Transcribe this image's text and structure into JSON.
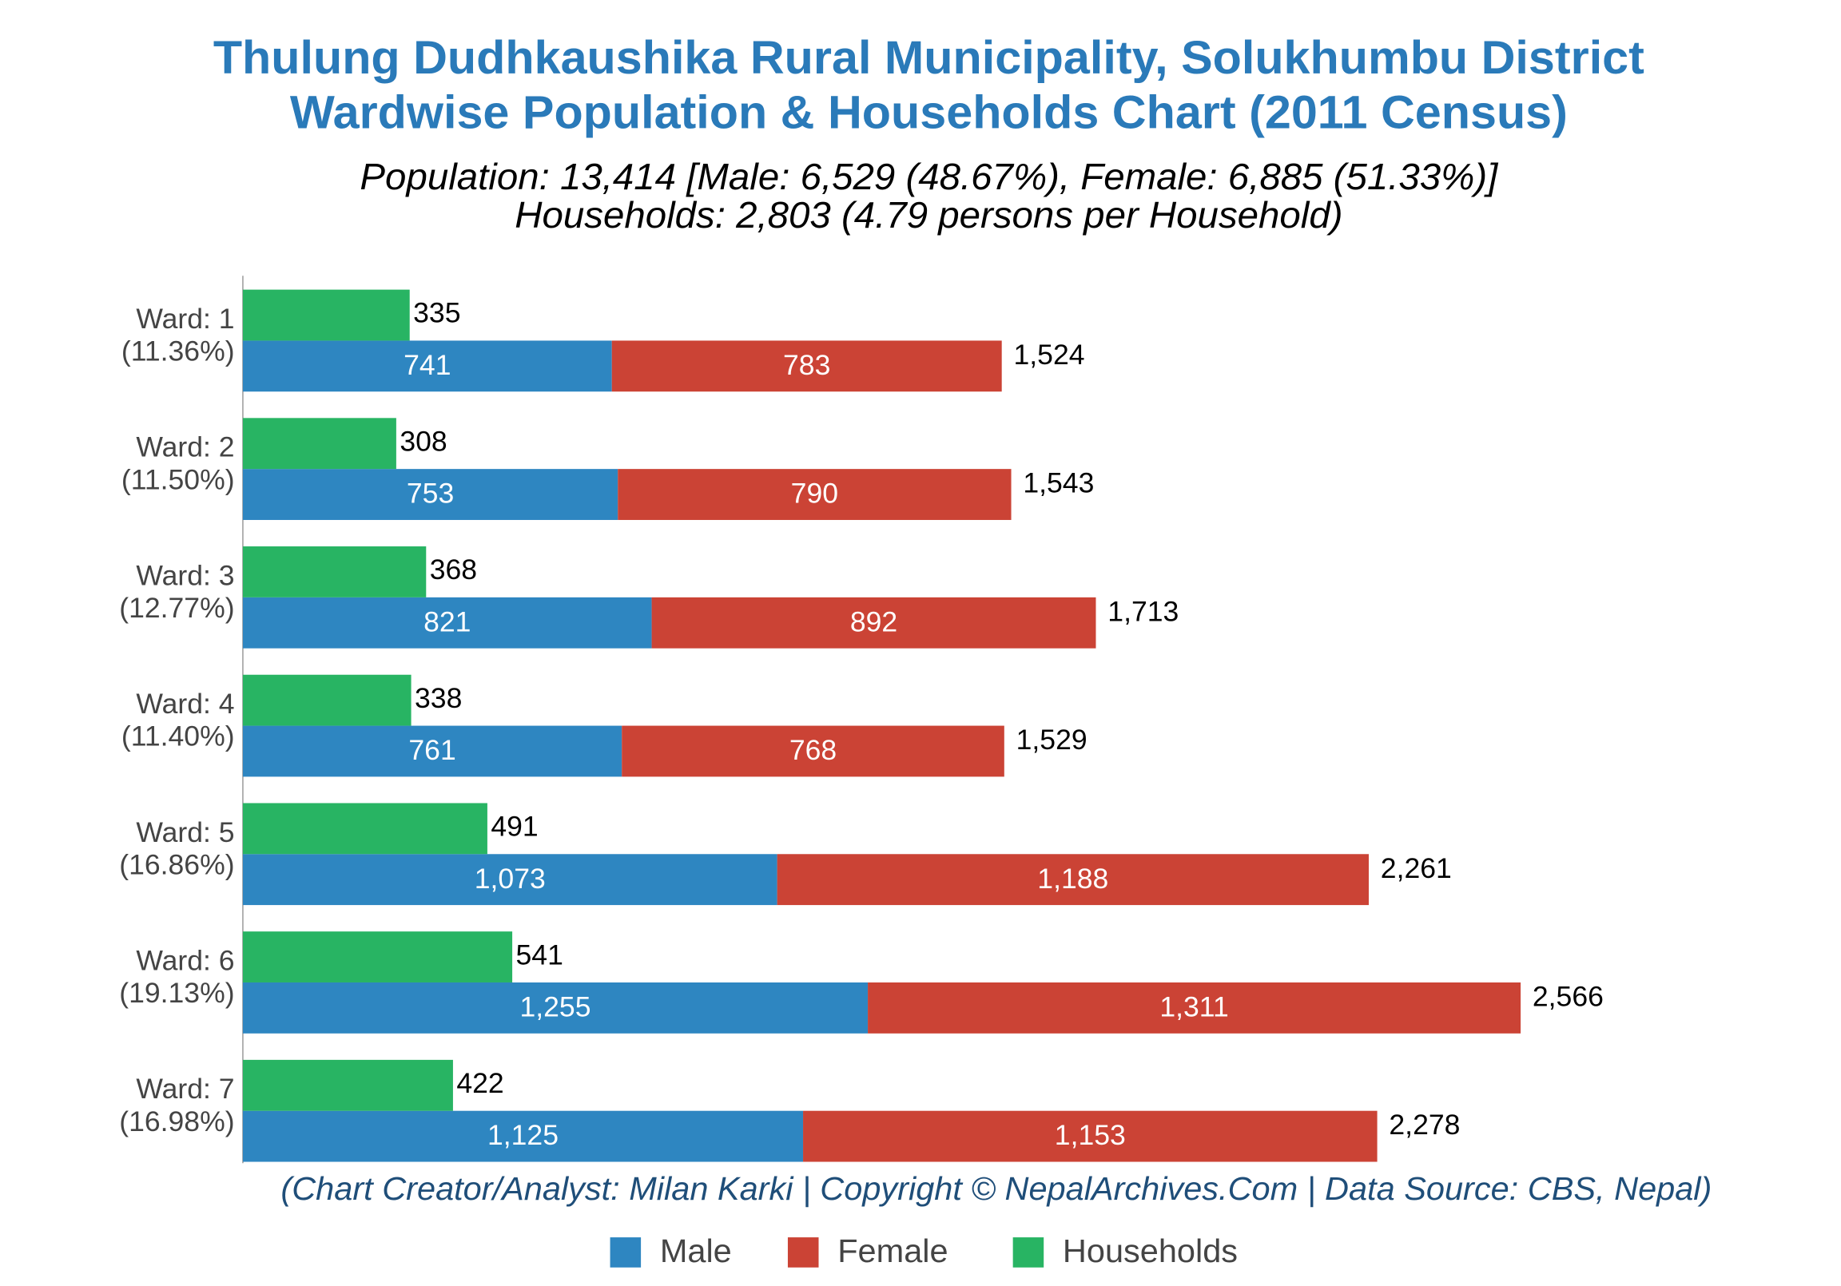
{
  "chart_data": {
    "type": "bar",
    "orientation": "horizontal",
    "title": "Thulung Dudhkaushika Rural Municipality, Solukhumbu District",
    "title_line2": "Wardwise Population & Households Chart (2011 Census)",
    "subtitle": "Population: 13,414 [Male: 6,529 (48.67%), Female: 6,885 (51.33%)]",
    "subtitle_line2": "Households: 2,803 (4.79 persons per Household)",
    "footer": "(Chart Creator/Analyst: Milan Karki | Copyright © NepalArchives.Com | Data Source: CBS, Nepal)",
    "categories": [
      "Ward: 1",
      "Ward: 2",
      "Ward: 3",
      "Ward: 4",
      "Ward: 5",
      "Ward: 6",
      "Ward: 7"
    ],
    "shares": {
      "values": [
        11.36,
        11.5,
        12.77,
        11.4,
        16.86,
        19.13,
        16.98
      ],
      "value_labels": [
        "(11.36%)",
        "(11.50%)",
        "(12.77%)",
        "(11.40%)",
        "(16.86%)",
        "(19.13%)",
        "(16.98%)"
      ]
    },
    "series": [
      {
        "name": "Male",
        "color": "#2e86c1",
        "stack": "population",
        "values": [
          741,
          753,
          821,
          761,
          1073,
          1255,
          1125
        ],
        "value_labels": [
          "741",
          "753",
          "821",
          "761",
          "1,073",
          "1,255",
          "1,125"
        ]
      },
      {
        "name": "Female",
        "color": "#cb4335",
        "stack": "population",
        "values": [
          783,
          790,
          892,
          768,
          1188,
          1311,
          1153
        ],
        "value_labels": [
          "783",
          "790",
          "892",
          "768",
          "1,188",
          "1,311",
          "1,153"
        ]
      },
      {
        "name": "Households",
        "color": "#28b463",
        "stack": "households",
        "values": [
          335,
          308,
          368,
          338,
          491,
          541,
          422
        ]
      }
    ],
    "totals": {
      "values": [
        1524,
        1543,
        1713,
        1529,
        2261,
        2566,
        2278
      ],
      "value_labels": [
        "1,524",
        "1,543",
        "1,713",
        "1,529",
        "2,261",
        "2,566",
        "2,278"
      ]
    },
    "xlim": [
      0,
      3000
    ],
    "legend": "bottom"
  }
}
